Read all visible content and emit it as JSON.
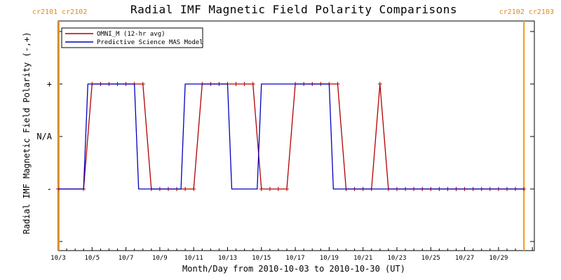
{
  "chart_data": {
    "type": "line",
    "title": "Radial IMF Magnetic Field Polarity Comparisons",
    "xlabel": "Month/Day from 2010-10-03 to 2010-10-30 (UT)",
    "ylabel": "Radial IMF Magnetic Field Polarity (-,+)",
    "x_tick_labels": [
      "10/3",
      "10/5",
      "10/7",
      "10/9",
      "10/11",
      "10/13",
      "10/15",
      "10/17",
      "10/19",
      "10/21",
      "10/23",
      "10/25",
      "10/27",
      "10/29"
    ],
    "y_tick_labels": [
      "+",
      "N/A",
      "-"
    ],
    "xlim": [
      "2010-10-03",
      "2010-10-30"
    ],
    "rotation_markers": [
      {
        "label": "cr2101 cr2102",
        "x": "2010-10-03 00:00"
      },
      {
        "label": "cr2102 cr2103",
        "x": "2010-10-30 12:00"
      }
    ],
    "legend": {
      "placement": "top-left",
      "grid": false
    },
    "series": [
      {
        "name": "OMNI_M (12-hr avg)",
        "color": "#b00000",
        "marker": "+",
        "points": [
          [
            "2010-10-03 00:00",
            "-"
          ],
          [
            "2010-10-04 12:00",
            "-"
          ],
          [
            "2010-10-05 00:00",
            "+"
          ],
          [
            "2010-10-05 12:00",
            "+"
          ],
          [
            "2010-10-06 00:00",
            "+"
          ],
          [
            "2010-10-06 12:00",
            "+"
          ],
          [
            "2010-10-07 00:00",
            "+"
          ],
          [
            "2010-10-07 12:00",
            "+"
          ],
          [
            "2010-10-08 00:00",
            "+"
          ],
          [
            "2010-10-08 12:00",
            "-"
          ],
          [
            "2010-10-09 00:00",
            "-"
          ],
          [
            "2010-10-09 12:00",
            "-"
          ],
          [
            "2010-10-10 00:00",
            "-"
          ],
          [
            "2010-10-10 12:00",
            "-"
          ],
          [
            "2010-10-11 00:00",
            "-"
          ],
          [
            "2010-10-11 12:00",
            "+"
          ],
          [
            "2010-10-12 00:00",
            "+"
          ],
          [
            "2010-10-12 12:00",
            "+"
          ],
          [
            "2010-10-13 00:00",
            "+"
          ],
          [
            "2010-10-13 12:00",
            "+"
          ],
          [
            "2010-10-14 00:00",
            "+"
          ],
          [
            "2010-10-14 12:00",
            "+"
          ],
          [
            "2010-10-15 00:00",
            "-"
          ],
          [
            "2010-10-15 12:00",
            "-"
          ],
          [
            "2010-10-16 00:00",
            "-"
          ],
          [
            "2010-10-16 12:00",
            "-"
          ],
          [
            "2010-10-17 00:00",
            "+"
          ],
          [
            "2010-10-17 12:00",
            "+"
          ],
          [
            "2010-10-18 00:00",
            "+"
          ],
          [
            "2010-10-18 12:00",
            "+"
          ],
          [
            "2010-10-19 00:00",
            "+"
          ],
          [
            "2010-10-19 12:00",
            "+"
          ],
          [
            "2010-10-20 00:00",
            "-"
          ],
          [
            "2010-10-20 12:00",
            "-"
          ],
          [
            "2010-10-21 00:00",
            "-"
          ],
          [
            "2010-10-21 12:00",
            "-"
          ],
          [
            "2010-10-22 00:00",
            "+"
          ],
          [
            "2010-10-22 12:00",
            "-"
          ],
          [
            "2010-10-23 00:00",
            "-"
          ],
          [
            "2010-10-23 12:00",
            "-"
          ],
          [
            "2010-10-24 00:00",
            "-"
          ],
          [
            "2010-10-24 12:00",
            "-"
          ],
          [
            "2010-10-25 00:00",
            "-"
          ],
          [
            "2010-10-25 12:00",
            "-"
          ],
          [
            "2010-10-26 00:00",
            "-"
          ],
          [
            "2010-10-26 12:00",
            "-"
          ],
          [
            "2010-10-27 00:00",
            "-"
          ],
          [
            "2010-10-27 12:00",
            "-"
          ],
          [
            "2010-10-28 00:00",
            "-"
          ],
          [
            "2010-10-28 12:00",
            "-"
          ],
          [
            "2010-10-29 00:00",
            "-"
          ],
          [
            "2010-10-29 12:00",
            "-"
          ],
          [
            "2010-10-30 00:00",
            "-"
          ],
          [
            "2010-10-30 12:00",
            "-"
          ]
        ]
      },
      {
        "name": "Predictive Science MAS Model",
        "color": "#0000c0",
        "marker": "none",
        "points": [
          [
            "2010-10-03 00:00",
            "-"
          ],
          [
            "2010-10-04 12:00",
            "-"
          ],
          [
            "2010-10-04 18:00",
            "+"
          ],
          [
            "2010-10-07 12:00",
            "+"
          ],
          [
            "2010-10-07 18:00",
            "-"
          ],
          [
            "2010-10-10 06:00",
            "-"
          ],
          [
            "2010-10-10 12:00",
            "+"
          ],
          [
            "2010-10-13 00:00",
            "+"
          ],
          [
            "2010-10-13 06:00",
            "-"
          ],
          [
            "2010-10-14 18:00",
            "-"
          ],
          [
            "2010-10-15 00:00",
            "+"
          ],
          [
            "2010-10-19 00:00",
            "+"
          ],
          [
            "2010-10-19 06:00",
            "-"
          ],
          [
            "2010-10-30 12:00",
            "-"
          ]
        ]
      }
    ]
  }
}
